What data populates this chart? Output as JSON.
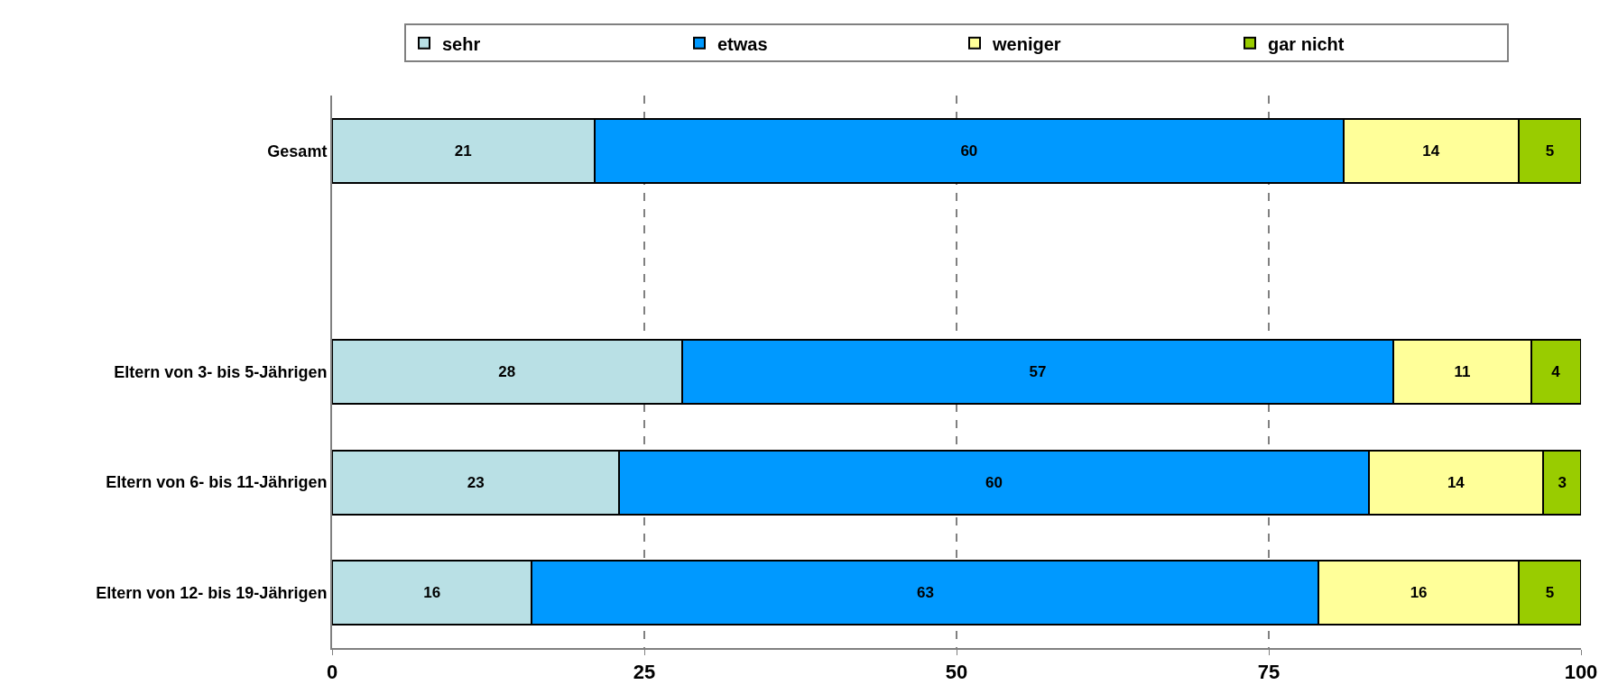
{
  "chart_data": {
    "type": "bar",
    "orientation": "horizontal",
    "stacked": true,
    "categories": [
      "Gesamt",
      null,
      "Eltern von 3- bis 5-Jährigen",
      "Eltern von 6- bis 11-Jährigen",
      "Eltern von 12- bis 19-Jährigen"
    ],
    "series": [
      {
        "name": "sehr",
        "color": "#b9e0e5",
        "values": [
          21,
          null,
          28,
          23,
          16
        ]
      },
      {
        "name": "etwas",
        "color": "#0099ff",
        "values": [
          60,
          null,
          57,
          60,
          63
        ]
      },
      {
        "name": "weniger",
        "color": "#ffff99",
        "values": [
          14,
          null,
          11,
          14,
          16
        ]
      },
      {
        "name": "gar nicht",
        "color": "#99cc00",
        "values": [
          5,
          null,
          4,
          3,
          5
        ]
      }
    ],
    "xlim": [
      0,
      100
    ],
    "xticks": [
      0,
      25,
      50,
      75,
      100
    ],
    "grid": "x",
    "legend": "top",
    "data_labels": true
  }
}
